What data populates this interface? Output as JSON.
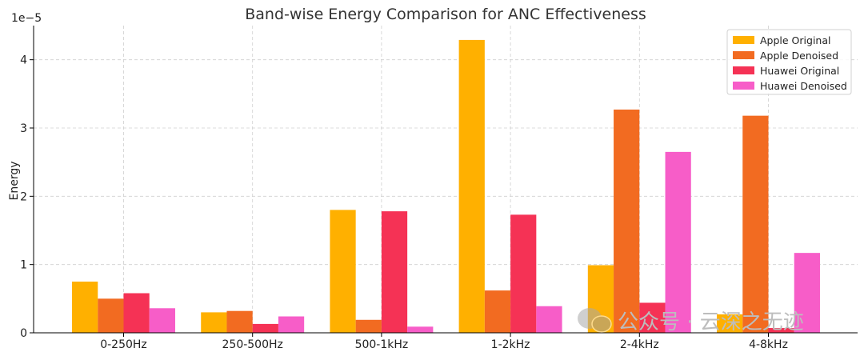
{
  "chart_data": {
    "type": "bar",
    "title": "Band-wise Energy Comparison for ANC Effectiveness",
    "xlabel": "",
    "ylabel": "Energy",
    "scale_label": "1e−5",
    "categories": [
      "0-250Hz",
      "250-500Hz",
      "500-1kHz",
      "1-2kHz",
      "2-4kHz",
      "4-8kHz"
    ],
    "ylim": [
      0,
      4.5
    ],
    "yticks": [
      0,
      1,
      2,
      3,
      4
    ],
    "grid": true,
    "legend_position": "top-right",
    "series": [
      {
        "name": "Apple Original",
        "color": "#FFB000",
        "values": [
          0.75,
          0.3,
          1.8,
          4.29,
          0.99,
          0.27
        ]
      },
      {
        "name": "Apple Denoised",
        "color": "#F26B21",
        "values": [
          0.5,
          0.32,
          0.19,
          0.62,
          3.27,
          3.18
        ]
      },
      {
        "name": "Huawei Original",
        "color": "#F53255",
        "values": [
          0.58,
          0.13,
          1.78,
          1.73,
          0.44,
          0.07
        ]
      },
      {
        "name": "Huawei Denoised",
        "color": "#F75DC8",
        "values": [
          0.36,
          0.24,
          0.09,
          0.39,
          2.65,
          1.17
        ]
      }
    ]
  },
  "watermark": {
    "text": "公众号 · 云深之无迹"
  }
}
